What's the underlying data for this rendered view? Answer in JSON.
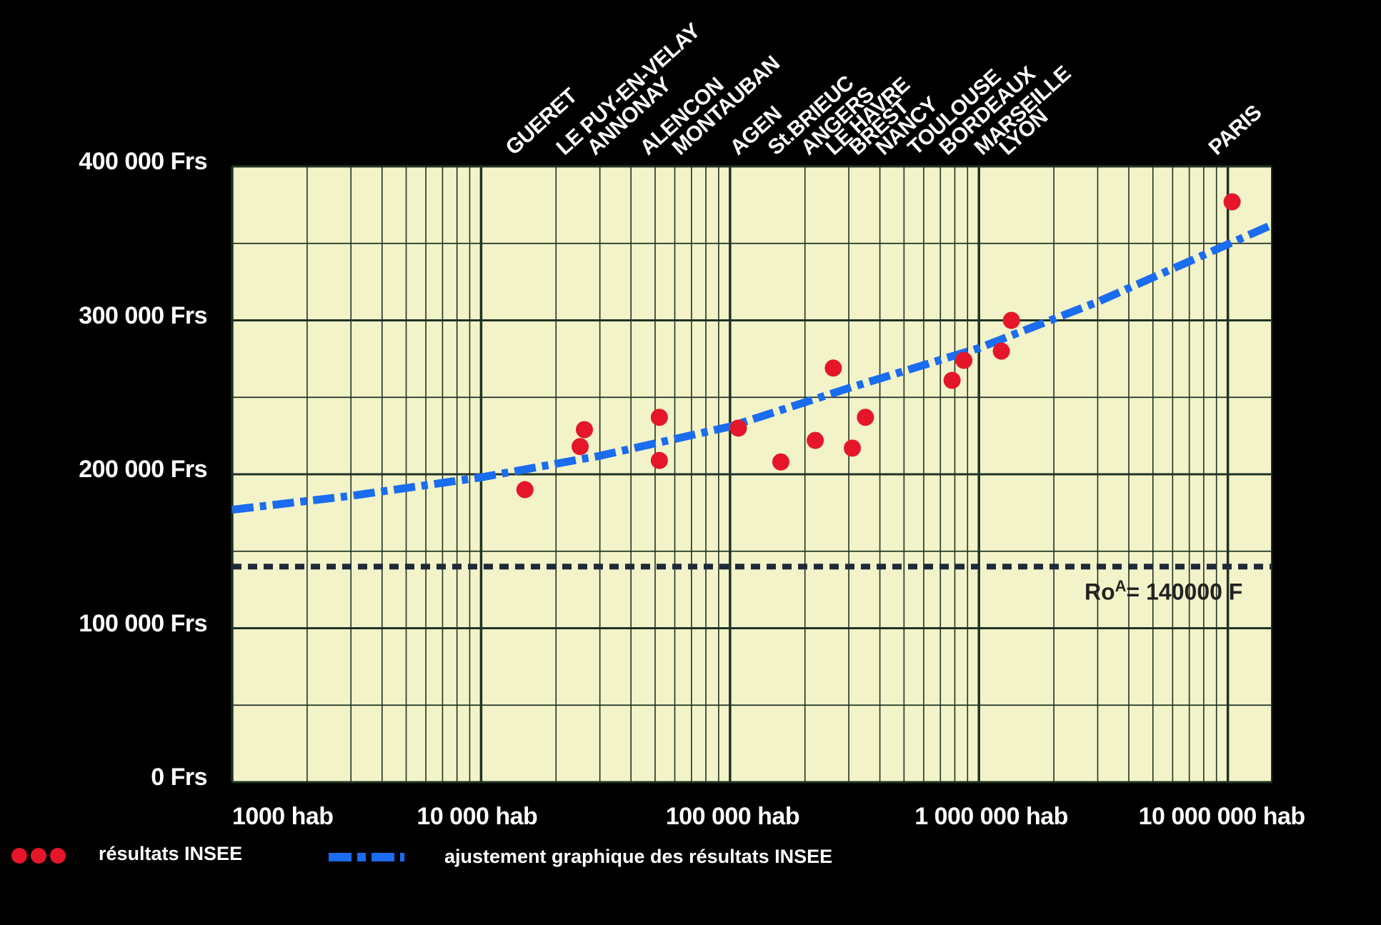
{
  "chart_data": {
    "type": "scatter",
    "xscale": "log",
    "xlim": [
      1000,
      15000000
    ],
    "ylim": [
      0,
      400000
    ],
    "grid": true,
    "y_ticks": [
      {
        "value": 400000,
        "label": "400 000 Frs"
      },
      {
        "value": 300000,
        "label": "300 000 Frs"
      },
      {
        "value": 200000,
        "label": "200 000 Frs"
      },
      {
        "value": 100000,
        "label": "100 000 Frs"
      },
      {
        "value": 0,
        "label": "0 Frs"
      }
    ],
    "x_ticks": [
      {
        "value": 1000,
        "label": "1000 hab"
      },
      {
        "value": 10000,
        "label": "10 000 hab"
      },
      {
        "value": 100000,
        "label": "100 000 hab"
      },
      {
        "value": 1000000,
        "label": "1 000 000 hab"
      },
      {
        "value": 10000000,
        "label": "10 000 000 hab"
      }
    ],
    "city_labels": [
      {
        "label": "GUERET",
        "x": 15000
      },
      {
        "label": "LE PUY-EN-VELAY",
        "x": 24000
      },
      {
        "label": "ANNONAY",
        "x": 32000
      },
      {
        "label": "ALENCON",
        "x": 52000
      },
      {
        "label": "MONTAUBAN",
        "x": 70000
      },
      {
        "label": "AGEN",
        "x": 120000
      },
      {
        "label": "St.BRIEUC",
        "x": 170000
      },
      {
        "label": "ANGERS",
        "x": 230000
      },
      {
        "label": "LE HAVRE",
        "x": 290000
      },
      {
        "label": "BREST",
        "x": 360000
      },
      {
        "label": "NANCY",
        "x": 460000
      },
      {
        "label": "TOULOUSE",
        "x": 620000
      },
      {
        "label": "BORDEAUX",
        "x": 830000
      },
      {
        "label": "MARSEILLE",
        "x": 1150000
      },
      {
        "label": "LYON",
        "x": 1450000
      },
      {
        "label": "PARIS",
        "x": 10000000
      }
    ],
    "series": [
      {
        "name": "résultats INSEE",
        "color": "#e5162a",
        "points": [
          {
            "x": 15000,
            "y": 190000
          },
          {
            "x": 25000,
            "y": 218000
          },
          {
            "x": 26000,
            "y": 229000
          },
          {
            "x": 52000,
            "y": 237000
          },
          {
            "x": 52000,
            "y": 209000
          },
          {
            "x": 108000,
            "y": 230000
          },
          {
            "x": 160000,
            "y": 208000
          },
          {
            "x": 220000,
            "y": 222000
          },
          {
            "x": 260000,
            "y": 269000
          },
          {
            "x": 310000,
            "y": 217000
          },
          {
            "x": 350000,
            "y": 237000
          },
          {
            "x": 780000,
            "y": 261000
          },
          {
            "x": 870000,
            "y": 274000
          },
          {
            "x": 1230000,
            "y": 280000
          },
          {
            "x": 1350000,
            "y": 300000
          },
          {
            "x": 10400000,
            "y": 377000
          }
        ]
      },
      {
        "name": "ajustement graphique des résultats INSEE",
        "color": "#1a6cf0",
        "line": [
          {
            "x": 1000,
            "y": 177000
          },
          {
            "x": 3000,
            "y": 186000
          },
          {
            "x": 10000,
            "y": 198000
          },
          {
            "x": 30000,
            "y": 212000
          },
          {
            "x": 100000,
            "y": 231000
          },
          {
            "x": 300000,
            "y": 256000
          },
          {
            "x": 1000000,
            "y": 282000
          },
          {
            "x": 3000000,
            "y": 312000
          },
          {
            "x": 15000000,
            "y": 362000
          }
        ]
      }
    ],
    "reference_line": {
      "y": 140000,
      "label": "Ro",
      "label_sup": "A",
      "label_tail": "= 140000 F",
      "color": "#1c2a3a"
    }
  },
  "legend": {
    "points_label": "résultats INSEE",
    "line_label": "ajustement graphique des résultats INSEE"
  },
  "colors": {
    "plot_bg": "#f3f3c9",
    "grid": "#1f3323",
    "background": "#000000"
  }
}
